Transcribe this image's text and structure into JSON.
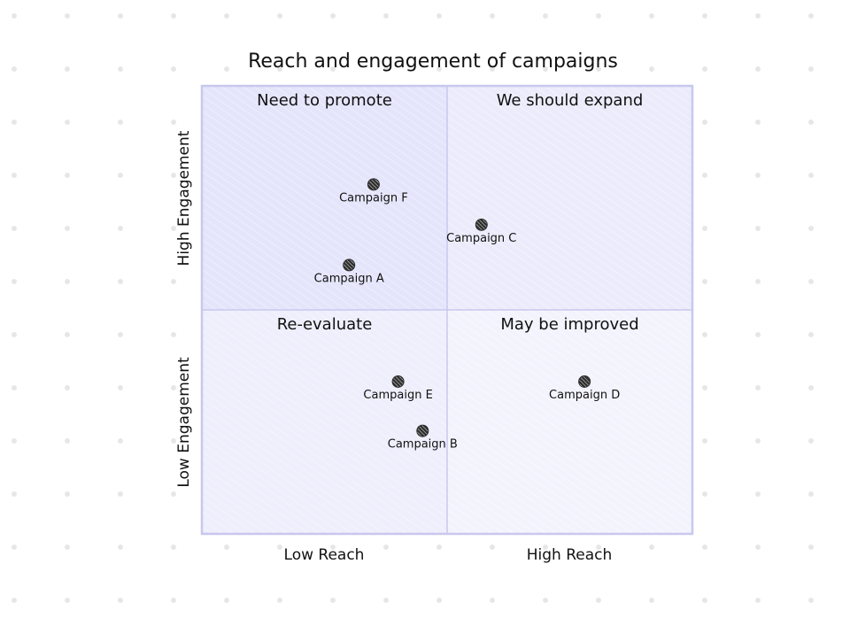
{
  "chart_data": {
    "type": "scatter",
    "title": "Reach and engagement of campaigns",
    "x_axis": {
      "left_label": "Low Reach",
      "right_label": "High Reach",
      "range": [
        0,
        1
      ]
    },
    "y_axis": {
      "bottom_label": "Low Engagement",
      "top_label": "High Engagement",
      "range": [
        0,
        1
      ]
    },
    "quadrants": [
      {
        "position": "top-left",
        "label": "Need to promote"
      },
      {
        "position": "top-right",
        "label": "We should expand"
      },
      {
        "position": "bottom-left",
        "label": "Re-evaluate"
      },
      {
        "position": "bottom-right",
        "label": "May be improved"
      }
    ],
    "points": [
      {
        "label": "Campaign A",
        "x": 0.3,
        "y": 0.6
      },
      {
        "label": "Campaign B",
        "x": 0.45,
        "y": 0.23
      },
      {
        "label": "Campaign C",
        "x": 0.57,
        "y": 0.69
      },
      {
        "label": "Campaign D",
        "x": 0.78,
        "y": 0.34
      },
      {
        "label": "Campaign E",
        "x": 0.4,
        "y": 0.34
      },
      {
        "label": "Campaign F",
        "x": 0.35,
        "y": 0.78
      }
    ],
    "colors": {
      "quadrant_fill_top_left": "#e4e4fb",
      "quadrant_fill_top_right": "#ebebfb",
      "quadrant_fill_bottom_left": "#eeeefc",
      "quadrant_fill_bottom_right": "#f3f3fd",
      "border": "#c8c8ee",
      "point": "#2e2e2e"
    }
  }
}
